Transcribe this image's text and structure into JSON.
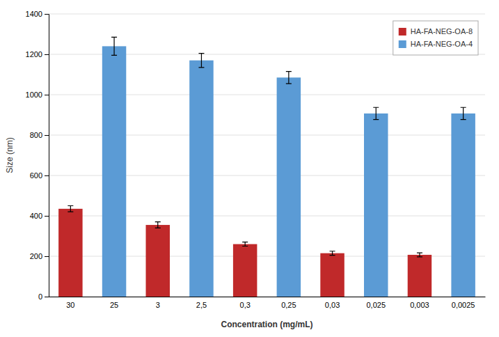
{
  "chart_data": {
    "type": "bar",
    "categories": [
      "30",
      "25",
      "3",
      "2,5",
      "0,3",
      "0,25",
      "0,03",
      "0,025",
      "0,003",
      "0,0025"
    ],
    "series": [
      {
        "name": "HA-FA-NEG-OA-8",
        "color": "#c0292a",
        "values": [
          435,
          null,
          355,
          null,
          260,
          null,
          215,
          null,
          207,
          null
        ],
        "errors": [
          15,
          null,
          15,
          null,
          10,
          null,
          10,
          null,
          10,
          null
        ]
      },
      {
        "name": "HA-FA-NEG-OA-4",
        "color": "#5b9bd5",
        "values": [
          null,
          1240,
          null,
          1170,
          null,
          1085,
          null,
          907,
          null,
          907
        ],
        "errors": [
          null,
          45,
          null,
          35,
          null,
          30,
          null,
          30,
          null,
          30
        ]
      }
    ],
    "xlabel": "Concentration (mg/mL)",
    "ylabel": "Size (nm)",
    "ylim": [
      0,
      1400
    ],
    "yticks": [
      0,
      200,
      400,
      600,
      800,
      1000,
      1200,
      1400
    ],
    "grid": true,
    "legend": "upper right"
  }
}
